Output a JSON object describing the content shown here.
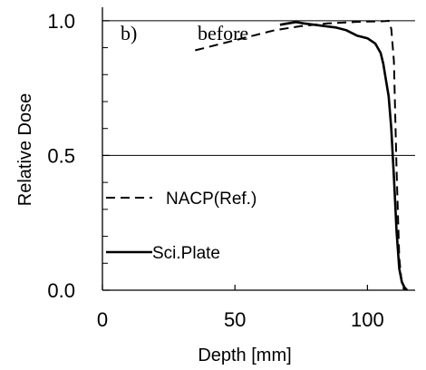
{
  "chart_data": {
    "type": "line",
    "panel_label": "b)",
    "title": "before",
    "xlabel": "Depth [mm]",
    "ylabel": "Relative Dose",
    "xlim": [
      0,
      118
    ],
    "ylim": [
      0,
      1.05
    ],
    "x_ticks": [
      0,
      50,
      100
    ],
    "x_tick_labels": [
      "0",
      "50",
      "100"
    ],
    "y_ticks": [
      0.0,
      0.5,
      1.0
    ],
    "y_tick_labels": [
      "0.0",
      "0.5",
      "1.0"
    ],
    "y_minor_ticks": [
      0.1,
      0.2,
      0.3,
      0.4,
      0.6,
      0.7,
      0.8,
      0.9
    ],
    "reference_lines": [
      0.5,
      1.0
    ],
    "legend_position": "left",
    "series": [
      {
        "name": "NACP(Ref.)",
        "style": "dashed",
        "x": [
          35,
          45,
          55,
          65,
          75,
          85,
          95,
          100,
          105,
          107,
          108,
          109,
          110,
          111,
          112,
          113,
          114
        ],
        "y": [
          0.89,
          0.915,
          0.94,
          0.965,
          0.98,
          0.99,
          0.995,
          0.997,
          0.998,
          0.999,
          1.0,
          0.97,
          0.85,
          0.45,
          0.12,
          0.02,
          0.0
        ]
      },
      {
        "name": "Sci.Plate",
        "style": "solid",
        "x": [
          67,
          70,
          73,
          76,
          80,
          84,
          88,
          92,
          96,
          100,
          103,
          105,
          106,
          107,
          108,
          109,
          110,
          111,
          112,
          113,
          114,
          115
        ],
        "y": [
          0.985,
          0.99,
          0.995,
          0.99,
          0.985,
          0.98,
          0.975,
          0.965,
          0.945,
          0.935,
          0.915,
          0.88,
          0.84,
          0.78,
          0.72,
          0.6,
          0.42,
          0.22,
          0.08,
          0.03,
          0.01,
          0.0
        ]
      }
    ]
  }
}
